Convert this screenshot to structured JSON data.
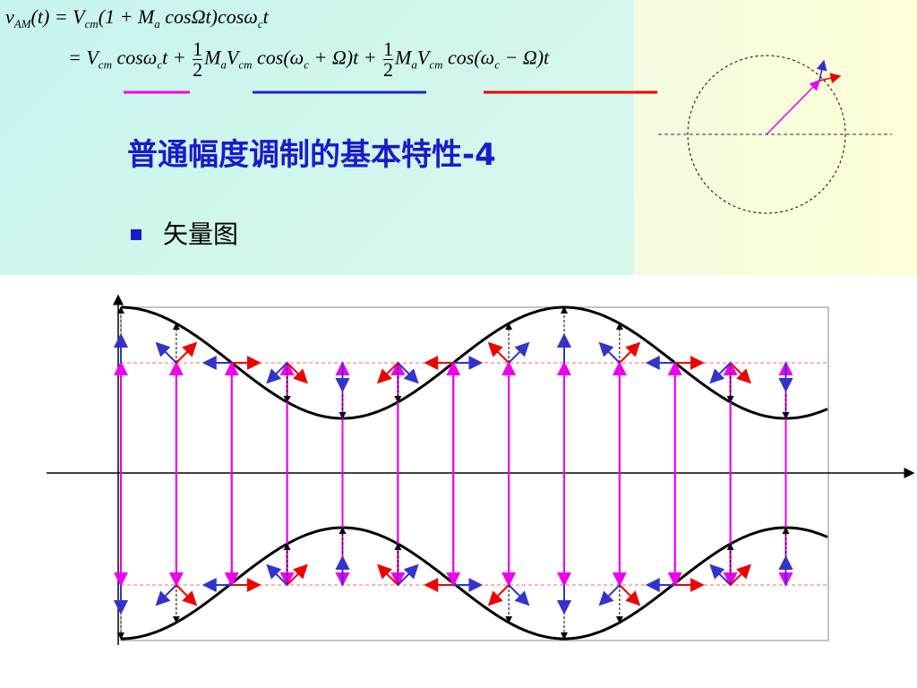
{
  "formula": {
    "line1": [
      "v",
      "AM",
      "(t) = V",
      "cm",
      "(1 + M",
      "a",
      " cosΩt)cosω",
      "c",
      "t"
    ],
    "line2": [
      "= V",
      "cm",
      " cosω",
      "c",
      "t + ",
      "1",
      "2",
      "M",
      "a",
      "V",
      "cm",
      " cos(ω",
      "c",
      " + Ω)t + ",
      "1",
      "2",
      "M",
      "a",
      "V",
      "cm",
      " cos(ω",
      "c",
      " − Ω)t"
    ]
  },
  "title": "普通幅度调制的基本特性-4",
  "bullet": "矢量图"
}
